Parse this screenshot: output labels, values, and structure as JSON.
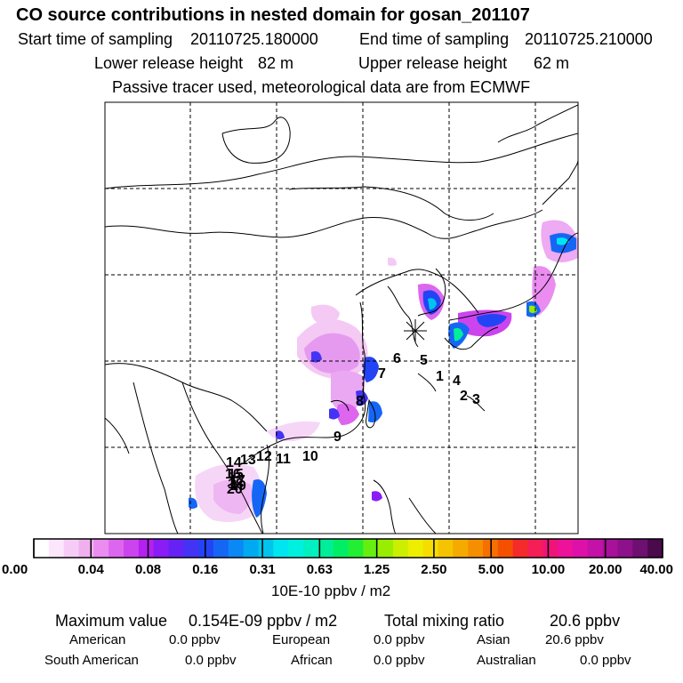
{
  "header": {
    "title": "CO  source contributions in nested domain for gosan_201107",
    "start_label": "Start time of sampling",
    "start_value": "20110725.180000",
    "end_label": "End time of sampling",
    "end_value": "20110725.210000",
    "lower_label": "Lower release height",
    "lower_value": "82 m",
    "upper_label": "Upper release height",
    "upper_value": "62 m",
    "subtitle": "Passive tracer used, meteorological data are from ECMWF"
  },
  "chart_data": {
    "type": "heatmap",
    "title": "CO  source contributions in nested domain for gosan_201107",
    "colorbar_unit": "10E-10 ppbv / m2",
    "colorbar_ticks": [
      "0.00",
      "0.04",
      "0.08",
      "0.16",
      "0.31",
      "0.63",
      "1.25",
      "2.50",
      "5.00",
      "10.00",
      "20.00",
      "40.00"
    ],
    "colorbar_colors": [
      "#ffffff",
      "#fbe6fb",
      "#f6ccf6",
      "#f0b0f0",
      "#ea8cf0",
      "#dd66ee",
      "#cc44ee",
      "#b420f0",
      "#8a1cf5",
      "#6622f5",
      "#4433f5",
      "#2244f5",
      "#1666f5",
      "#0a88f5",
      "#00aaf0",
      "#00c4ec",
      "#00e6f0",
      "#00f0e0",
      "#00f0c0",
      "#00ee99",
      "#00ee66",
      "#22ee33",
      "#66ee11",
      "#99ee00",
      "#ccee00",
      "#eeee00",
      "#f5dd00",
      "#f5c400",
      "#f5aa00",
      "#f58f00",
      "#f57000",
      "#f55000",
      "#f52a2a",
      "#f51e55",
      "#f01478",
      "#ee1199",
      "#dd11aa",
      "#c411a8",
      "#a8119a",
      "#8c118a",
      "#6e1070",
      "#4a0a4c"
    ],
    "source_marker": "gosan",
    "trajectory_labels": [
      "1",
      "2",
      "3",
      "4",
      "5",
      "6",
      "7",
      "8",
      "9",
      "10",
      "11",
      "12",
      "13",
      "14",
      "15",
      "16",
      "17",
      "18",
      "19",
      "20"
    ]
  },
  "footer": {
    "max_label": "Maximum value",
    "max_value": "0.154E-09 ppbv / m2",
    "total_label": "Total mixing ratio",
    "total_value": "20.6 ppbv",
    "regions": [
      {
        "name": "American",
        "value": "0.0 ppbv"
      },
      {
        "name": "European",
        "value": "0.0 ppbv"
      },
      {
        "name": "Asian",
        "value": "20.6 ppbv"
      },
      {
        "name": "South American",
        "value": "0.0 ppbv"
      },
      {
        "name": "African",
        "value": "0.0 ppbv"
      },
      {
        "name": "Australian",
        "value": "0.0 ppbv"
      }
    ]
  }
}
